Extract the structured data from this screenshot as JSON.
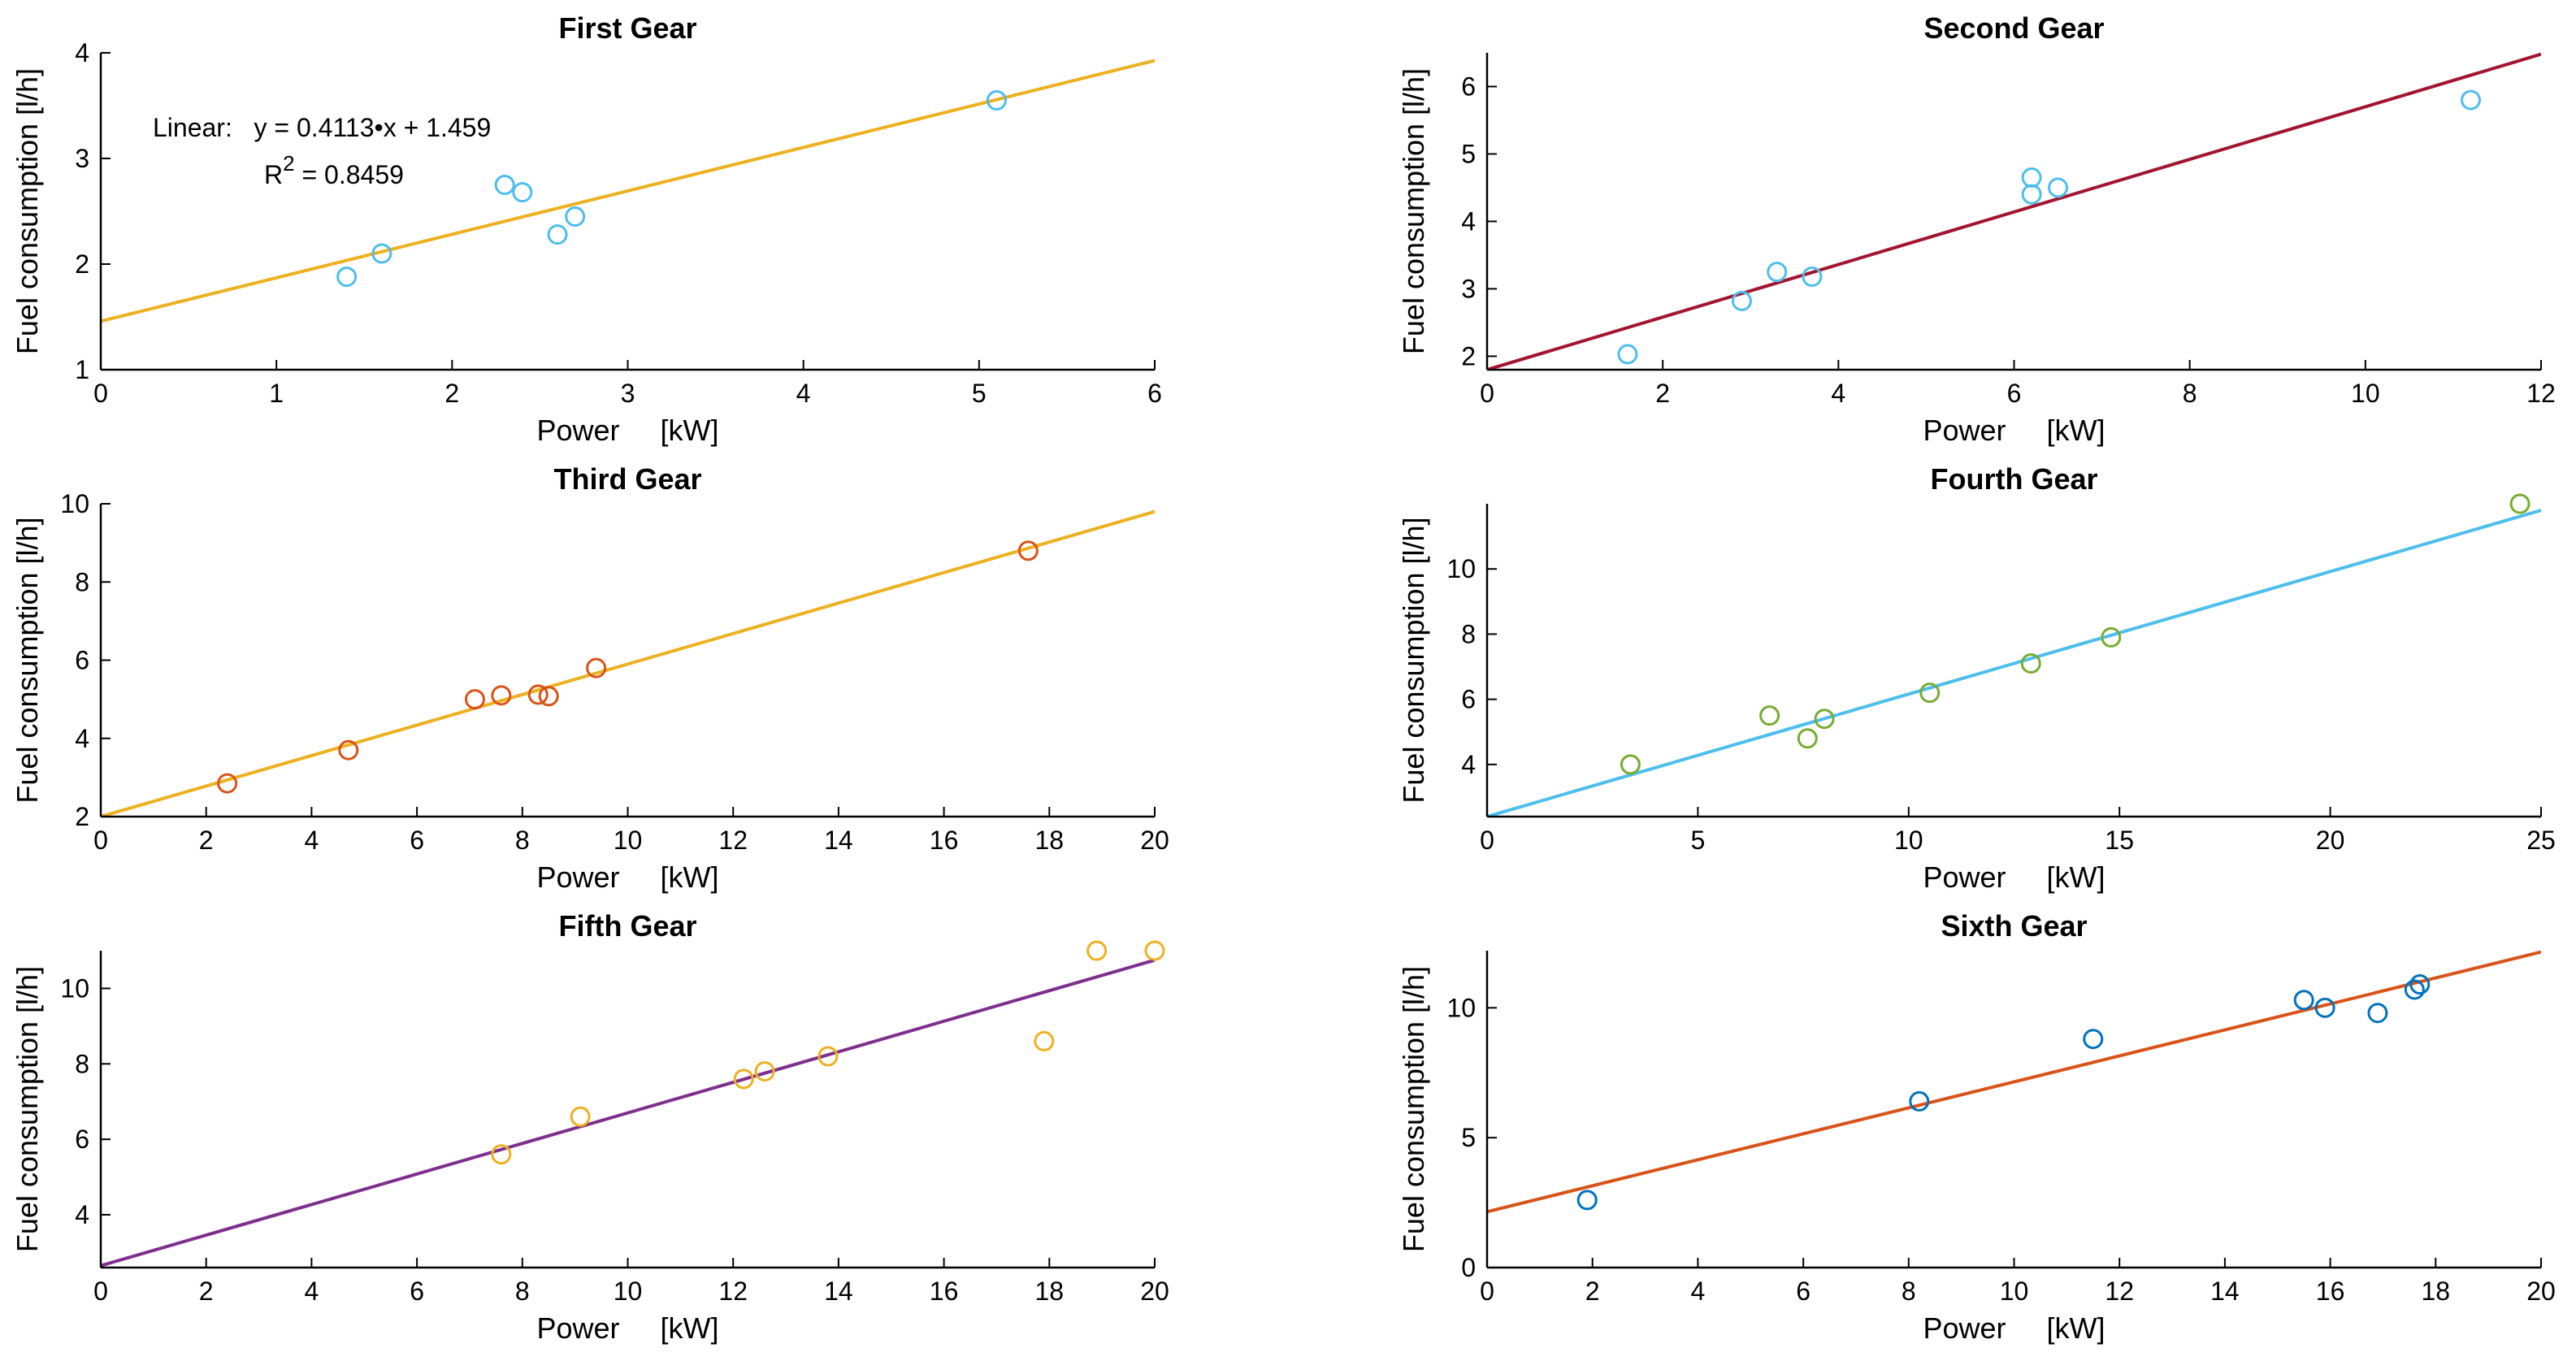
{
  "chart_data": [
    {
      "type": "scatter",
      "title": "First Gear",
      "xlabel": "Power     [kW]",
      "ylabel": "Fuel consumption [l/h]",
      "xlim": [
        0,
        6
      ],
      "ylim": [
        1,
        4
      ],
      "xticks": [
        0,
        1,
        2,
        3,
        4,
        5,
        6
      ],
      "yticks": [
        1,
        2,
        3,
        4
      ],
      "marker_color": "#4DBEEE",
      "line_color": "#EDB120",
      "points": {
        "x": [
          1.4,
          1.6,
          2.3,
          2.4,
          2.6,
          2.7,
          5.1
        ],
        "y": [
          1.88,
          2.1,
          2.75,
          2.68,
          2.28,
          2.45,
          3.55
        ]
      },
      "fit": {
        "slope": 0.4113,
        "intercept": 1.459
      },
      "annotation": {
        "line1": "Linear:   y = 0.4113•x + 1.459",
        "r_symbol": "R",
        "sup": "2",
        "line2": " = 0.8459"
      }
    },
    {
      "type": "scatter",
      "title": "Second Gear",
      "xlabel": "Power     [kW]",
      "ylabel": "Fuel consumption [l/h]",
      "xlim": [
        0,
        12
      ],
      "ylim": [
        1.8,
        6.5
      ],
      "xticks": [
        0,
        2,
        4,
        6,
        8,
        10,
        12
      ],
      "yticks": [
        2,
        3,
        4,
        5,
        6
      ],
      "marker_color": "#4DBEEE",
      "line_color": "#A2142F",
      "points": {
        "x": [
          1.6,
          2.9,
          3.3,
          3.7,
          6.2,
          6.2,
          6.5,
          11.2
        ],
        "y": [
          2.03,
          2.82,
          3.25,
          3.18,
          4.65,
          4.4,
          4.5,
          5.8
        ]
      },
      "fit": {
        "slope": 0.39,
        "intercept": 1.8
      }
    },
    {
      "type": "scatter",
      "title": "Third Gear",
      "xlabel": "Power     [kW]",
      "ylabel": "Fuel consumption [l/h]",
      "xlim": [
        0,
        20
      ],
      "ylim": [
        2,
        10
      ],
      "xticks": [
        0,
        2,
        4,
        6,
        8,
        10,
        12,
        14,
        16,
        18,
        20
      ],
      "yticks": [
        2,
        4,
        6,
        8,
        10
      ],
      "marker_color": "#D95319",
      "line_color": "#EDB120",
      "points": {
        "x": [
          2.4,
          4.7,
          7.1,
          7.6,
          8.3,
          8.5,
          9.4,
          17.6
        ],
        "y": [
          2.85,
          3.7,
          5.0,
          5.1,
          5.12,
          5.08,
          5.8,
          8.8
        ]
      },
      "fit": {
        "slope": 0.39,
        "intercept": 2.0
      }
    },
    {
      "type": "scatter",
      "title": "Fourth Gear",
      "xlabel": "Power     [kW]",
      "ylabel": "Fuel consumption [l/h]",
      "xlim": [
        0,
        25
      ],
      "ylim": [
        2.4,
        12
      ],
      "xticks": [
        0,
        5,
        10,
        15,
        20,
        25
      ],
      "yticks": [
        4,
        6,
        8,
        10
      ],
      "marker_color": "#77AC30",
      "line_color": "#4DBEEE",
      "points": {
        "x": [
          3.4,
          6.7,
          7.6,
          8.0,
          10.5,
          12.9,
          14.8,
          24.5
        ],
        "y": [
          4.0,
          5.5,
          4.8,
          5.4,
          6.2,
          7.1,
          7.9,
          12.0
        ]
      },
      "fit": {
        "slope": 0.376,
        "intercept": 2.4
      }
    },
    {
      "type": "scatter",
      "title": "Fifth Gear",
      "xlabel": "Power     [kW]",
      "ylabel": "Fuel consumption [l/h]",
      "xlim": [
        0,
        20
      ],
      "ylim": [
        2.6,
        11
      ],
      "xticks": [
        0,
        2,
        4,
        6,
        8,
        10,
        12,
        14,
        16,
        18,
        20
      ],
      "yticks": [
        4,
        6,
        8,
        10
      ],
      "marker_color": "#EDB120",
      "line_color": "#7E2F8E",
      "points": {
        "x": [
          7.6,
          9.1,
          12.2,
          12.6,
          13.8,
          17.9,
          18.9,
          20.0
        ],
        "y": [
          5.6,
          6.6,
          7.6,
          7.8,
          8.2,
          8.6,
          11.0,
          11.0
        ]
      },
      "fit": {
        "slope": 0.405,
        "intercept": 2.65
      }
    },
    {
      "type": "scatter",
      "title": "Sixth Gear",
      "xlabel": "Power     [kW]",
      "ylabel": "Fuel consumption [l/h]",
      "xlim": [
        0,
        20
      ],
      "ylim": [
        0,
        12.2
      ],
      "xticks": [
        0,
        2,
        4,
        6,
        8,
        10,
        12,
        14,
        16,
        18,
        20
      ],
      "yticks": [
        0,
        5,
        10
      ],
      "marker_color": "#0072BD",
      "line_color": "#D95319",
      "points": {
        "x": [
          1.9,
          8.2,
          11.5,
          15.5,
          15.9,
          16.9,
          17.6,
          17.7
        ],
        "y": [
          2.6,
          6.4,
          8.8,
          10.3,
          10.0,
          9.8,
          10.7,
          10.9
        ]
      },
      "fit": {
        "slope": 0.5,
        "intercept": 2.15
      }
    }
  ]
}
